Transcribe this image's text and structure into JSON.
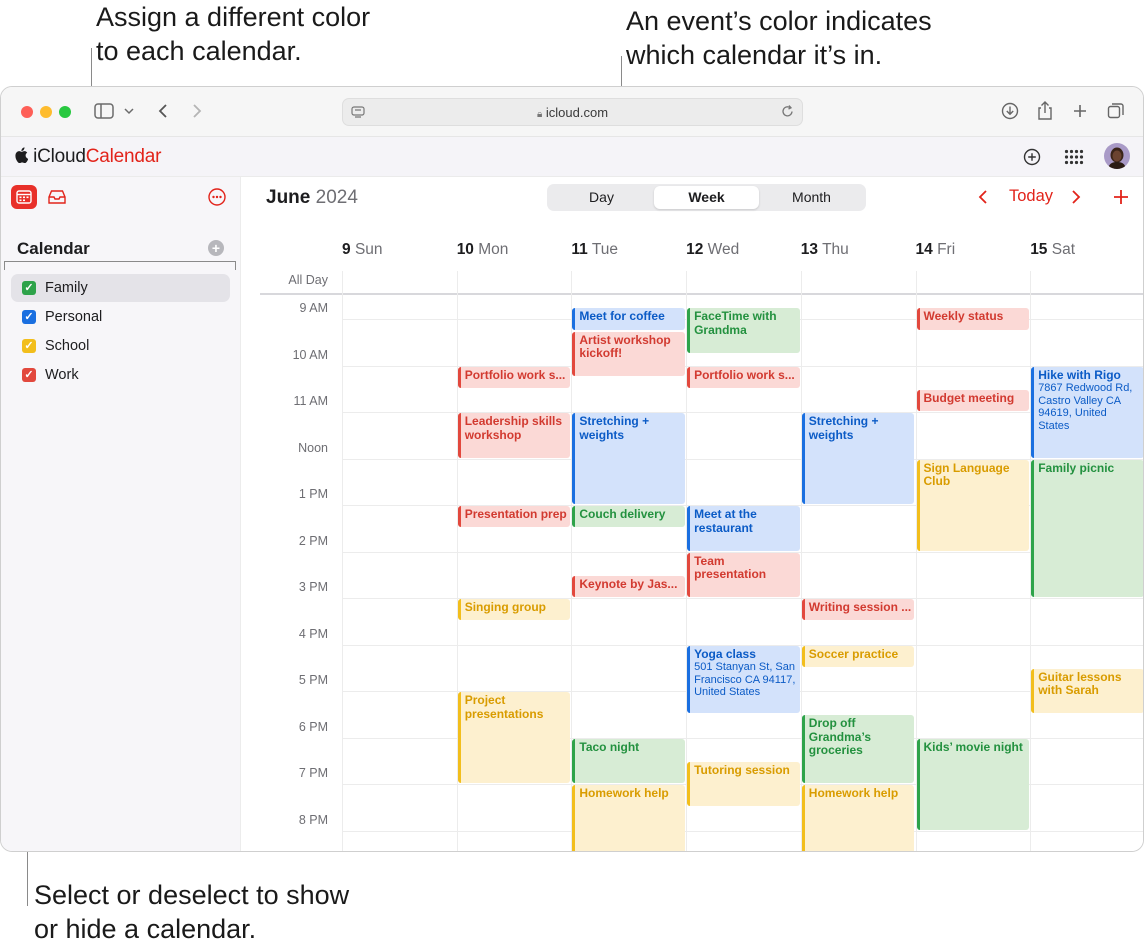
{
  "callouts": {
    "top_left": [
      "Assign a different color",
      "to each calendar."
    ],
    "top_right": [
      "An event’s color indicates",
      "which calendar it’s in."
    ],
    "bottom": [
      "Select or deselect to show",
      "or hide a calendar."
    ]
  },
  "browser": {
    "url": "icloud.com"
  },
  "app": {
    "brand_icloud": "iCloud",
    "brand_calendar": "Calendar"
  },
  "sidebar": {
    "title": "Calendar",
    "calendars": [
      {
        "label": "Family",
        "color": "#2ea34a",
        "checked": true,
        "selected": true
      },
      {
        "label": "Personal",
        "color": "#1a6fe0",
        "checked": true,
        "selected": false
      },
      {
        "label": "School",
        "color": "#f2be1c",
        "checked": true,
        "selected": false
      },
      {
        "label": "Work",
        "color": "#e2483d",
        "checked": true,
        "selected": false
      }
    ]
  },
  "header": {
    "month": "June",
    "year": "2024",
    "views": [
      "Day",
      "Week",
      "Month"
    ],
    "active_view": "Week",
    "today_label": "Today",
    "accent": "#e2231a"
  },
  "days": [
    {
      "num": "9",
      "name": "Sun"
    },
    {
      "num": "10",
      "name": "Mon"
    },
    {
      "num": "11",
      "name": "Tue"
    },
    {
      "num": "12",
      "name": "Wed"
    },
    {
      "num": "13",
      "name": "Thu"
    },
    {
      "num": "14",
      "name": "Fri"
    },
    {
      "num": "15",
      "name": "Sat"
    }
  ],
  "time_labels": [
    "All Day",
    "9 AM",
    "10 AM",
    "11 AM",
    "Noon",
    "1 PM",
    "2 PM",
    "3 PM",
    "4 PM",
    "5 PM",
    "6 PM",
    "7 PM",
    "8 PM"
  ],
  "events": [
    {
      "day": 2,
      "start": 8.75,
      "end": 9.25,
      "title": "Meet for coffee",
      "color": "blue"
    },
    {
      "day": 2,
      "start": 9.25,
      "end": 10.25,
      "title": "Artist workshop kickoff!",
      "color": "red"
    },
    {
      "day": 3,
      "start": 8.75,
      "end": 9.75,
      "title": "FaceTime with Grandma",
      "color": "green"
    },
    {
      "day": 5,
      "start": 8.75,
      "end": 9.25,
      "title": "Weekly status",
      "color": "red"
    },
    {
      "day": 1,
      "start": 10.0,
      "end": 10.5,
      "title": "Portfolio work s...",
      "color": "red"
    },
    {
      "day": 3,
      "start": 10.0,
      "end": 10.5,
      "title": "Portfolio work s...",
      "color": "red"
    },
    {
      "day": 6,
      "start": 10.0,
      "end": 12.0,
      "title": "Hike with Rigo",
      "location": "7867 Redwood Rd, Castro Valley CA 94619, United States",
      "color": "blue"
    },
    {
      "day": 5,
      "start": 10.5,
      "end": 11.0,
      "title": "Budget meeting",
      "color": "red"
    },
    {
      "day": 1,
      "start": 11.0,
      "end": 12.0,
      "title": "Leadership skills workshop",
      "color": "red"
    },
    {
      "day": 2,
      "start": 11.0,
      "end": 13.0,
      "title": "Stretching + weights",
      "color": "blue"
    },
    {
      "day": 4,
      "start": 11.0,
      "end": 13.0,
      "title": "Stretching + weights",
      "color": "blue"
    },
    {
      "day": 5,
      "start": 12.0,
      "end": 14.0,
      "title": "Sign Language Club",
      "color": "yellow"
    },
    {
      "day": 6,
      "start": 12.0,
      "end": 15.0,
      "title": "Family picnic",
      "color": "green"
    },
    {
      "day": 1,
      "start": 13.0,
      "end": 13.5,
      "title": "Presentation prep",
      "color": "red"
    },
    {
      "day": 2,
      "start": 13.0,
      "end": 13.5,
      "title": "Couch delivery",
      "color": "green"
    },
    {
      "day": 3,
      "start": 13.0,
      "end": 14.0,
      "title": "Meet at the restaurant",
      "color": "blue"
    },
    {
      "day": 3,
      "start": 14.0,
      "end": 15.0,
      "title": "Team presentation",
      "color": "red"
    },
    {
      "day": 2,
      "start": 14.5,
      "end": 15.0,
      "title": "Keynote by Jas...",
      "color": "red"
    },
    {
      "day": 1,
      "start": 15.0,
      "end": 15.5,
      "title": "Singing group",
      "color": "yellow"
    },
    {
      "day": 4,
      "start": 15.0,
      "end": 15.5,
      "title": "Writing session ...",
      "color": "red"
    },
    {
      "day": 3,
      "start": 16.0,
      "end": 17.5,
      "title": "Yoga class",
      "location": "501 Stanyan St, San Francisco CA 94117, United States",
      "color": "blue"
    },
    {
      "day": 4,
      "start": 16.0,
      "end": 16.5,
      "title": "Soccer practice",
      "color": "yellow"
    },
    {
      "day": 6,
      "start": 16.5,
      "end": 17.5,
      "title": "Guitar lessons with Sarah",
      "color": "yellow"
    },
    {
      "day": 1,
      "start": 17.0,
      "end": 19.0,
      "title": "Project presentations",
      "color": "yellow"
    },
    {
      "day": 4,
      "start": 17.5,
      "end": 19.0,
      "title": "Drop off Grandma’s groceries",
      "color": "green"
    },
    {
      "day": 2,
      "start": 18.0,
      "end": 19.0,
      "title": "Taco night",
      "color": "green"
    },
    {
      "day": 5,
      "start": 18.0,
      "end": 20.0,
      "title": "Kids’ movie night",
      "color": "green"
    },
    {
      "day": 3,
      "start": 18.5,
      "end": 19.5,
      "title": "Tutoring session",
      "color": "yellow"
    },
    {
      "day": 2,
      "start": 19.0,
      "end": 21.0,
      "title": "Homework help",
      "color": "yellow"
    },
    {
      "day": 4,
      "start": 19.0,
      "end": 21.0,
      "title": "Homework help",
      "color": "yellow"
    }
  ]
}
